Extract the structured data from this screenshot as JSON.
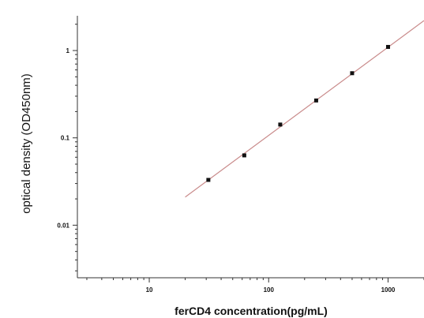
{
  "chart_data": {
    "type": "scatter",
    "xlabel": "ferCD4 concentration(pg/mL)",
    "ylabel": "optical density (OD450nm)",
    "x_scale": "log",
    "y_scale": "log",
    "xlim": [
      2.5,
      2000
    ],
    "ylim": [
      0.0025,
      2.5
    ],
    "x_ticks": [
      {
        "value": 10,
        "label": "10"
      },
      {
        "value": 100,
        "label": "100"
      },
      {
        "value": 1000,
        "label": "1000"
      }
    ],
    "y_ticks": [
      {
        "value": 0.01,
        "label": "0.01"
      },
      {
        "value": 0.1,
        "label": "0.1"
      },
      {
        "value": 1,
        "label": "1"
      }
    ],
    "grid": false,
    "points": [
      {
        "x": 31.25,
        "y": 0.033
      },
      {
        "x": 62.5,
        "y": 0.063
      },
      {
        "x": 125,
        "y": 0.142
      },
      {
        "x": 250,
        "y": 0.268
      },
      {
        "x": 500,
        "y": 0.55
      },
      {
        "x": 1000,
        "y": 1.1
      }
    ],
    "fit_line": {
      "x_start": 20,
      "y_start": 0.021,
      "x_end": 2000,
      "y_end": 2.2
    },
    "colors": {
      "points": "#111111",
      "fit_line": "#c98b8b",
      "axes": "#333333"
    }
  }
}
